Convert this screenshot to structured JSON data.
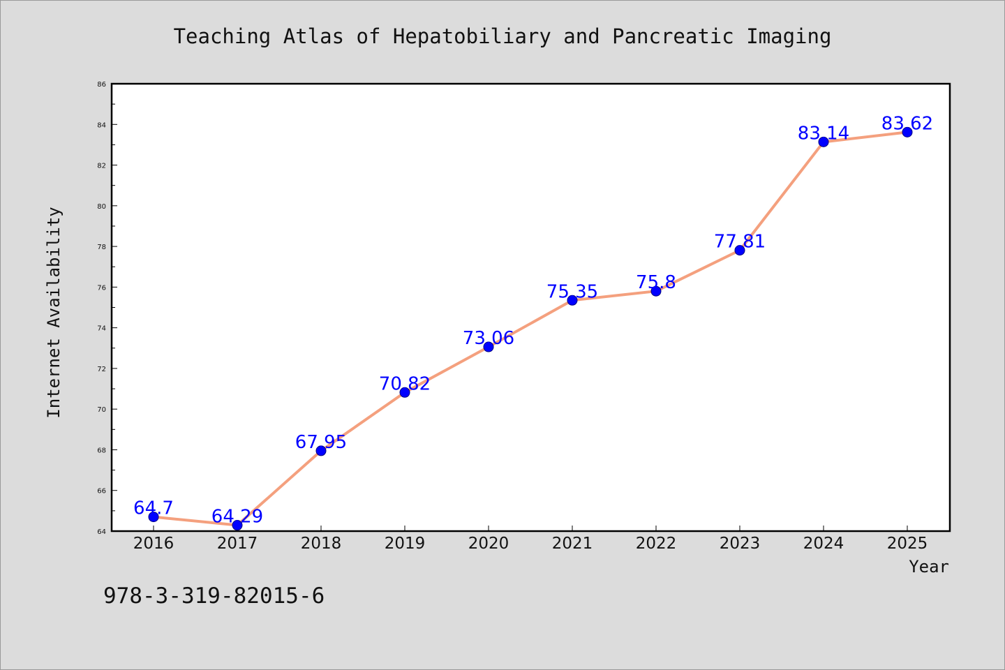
{
  "chart_data": {
    "type": "line",
    "title": "Teaching Atlas of Hepatobiliary and Pancreatic Imaging",
    "xlabel": "Year",
    "ylabel": "Internet Availability",
    "categories": [
      "2016",
      "2017",
      "2018",
      "2019",
      "2020",
      "2021",
      "2022",
      "2023",
      "2024",
      "2025"
    ],
    "series": [
      {
        "values": [
          64.7,
          64.29,
          67.95,
          70.82,
          73.06,
          75.35,
          75.8,
          77.81,
          83.14,
          83.62
        ],
        "labels": [
          "64.7",
          "64.29",
          "67.95",
          "70.82",
          "73.06",
          "75.35",
          "75.8",
          "77.81",
          "83.14",
          "83.62"
        ]
      }
    ],
    "ylim": [
      64,
      86
    ],
    "yticks": [
      "64",
      "66",
      "68",
      "70",
      "72",
      "74",
      "76",
      "78",
      "80",
      "82",
      "84",
      "86"
    ],
    "grid": false,
    "colors": {
      "line": "#f4a07e",
      "marker": "#0000ff",
      "label": "#0000ff",
      "background": "#dcdcdc",
      "plot_background": "#ffffff"
    }
  },
  "footer": {
    "isbn": "978-3-319-82015-6"
  }
}
